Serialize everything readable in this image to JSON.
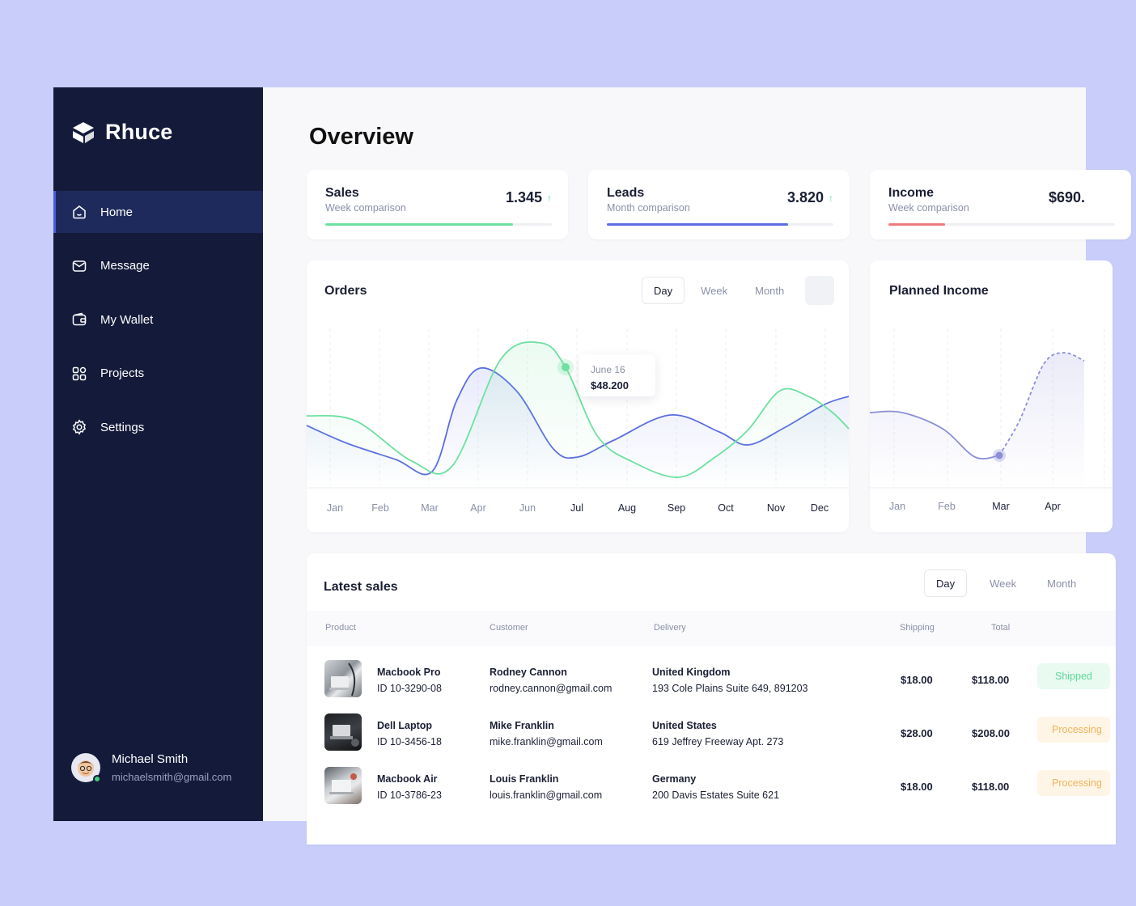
{
  "app": {
    "name": "Rhuce"
  },
  "sidebar": {
    "items": [
      {
        "label": "Home",
        "icon": "home-icon",
        "active": true
      },
      {
        "label": "Message",
        "icon": "mail-icon"
      },
      {
        "label": "My Wallet",
        "icon": "wallet-icon"
      },
      {
        "label": "Projects",
        "icon": "grid-icon"
      },
      {
        "label": "Settings",
        "icon": "gear-icon"
      }
    ],
    "user": {
      "name": "Michael Smith",
      "email": "michaelsmith@gmail.com",
      "status": "online"
    }
  },
  "page": {
    "title": "Overview"
  },
  "stats": [
    {
      "name": "Sales",
      "sub": "Week comparison",
      "value": "1.345",
      "progress": 0.83,
      "color": "#6ee0a0"
    },
    {
      "name": "Leads",
      "sub": "Month comparison",
      "value": "3.820",
      "progress": 0.8,
      "color": "#5b6ee1"
    },
    {
      "name": "Income",
      "sub": "Week comparison",
      "value": "$690.",
      "progress": 0.25,
      "color": "#ef7b7b"
    }
  ],
  "orders": {
    "title": "Orders",
    "filters": [
      "Day",
      "Week",
      "Month"
    ],
    "active_filter": "Day",
    "tooltip": {
      "date": "June 16",
      "value": "$48.200"
    },
    "chart_data": {
      "type": "line",
      "categories": [
        "Jan",
        "Feb",
        "Mar",
        "Apr",
        "Jun",
        "Jul",
        "Aug",
        "Sep",
        "Oct",
        "Nov",
        "Dec"
      ],
      "series": [
        {
          "color": "#5b6ee1"
        },
        {
          "color": "#6ee0a0"
        }
      ]
    }
  },
  "planned_income": {
    "title": "Planned Income",
    "chart_data": {
      "type": "line",
      "categories": [
        "Jan",
        "Feb",
        "Mar",
        "Apr"
      ],
      "series": [
        {
          "color": "#8c8fd6"
        }
      ]
    }
  },
  "latest_sales": {
    "title": "Latest sales",
    "filters": [
      "Day",
      "Week",
      "Month"
    ],
    "active_filter": "Day",
    "columns": {
      "product": "Product",
      "customer": "Customer",
      "delivery": "Delivery",
      "shipping": "Shipping",
      "total": "Total"
    },
    "rows": [
      {
        "product": "Macbook Pro",
        "id": "ID 10-3290-08",
        "customer": "Rodney Cannon",
        "email": "rodney.cannon@gmail.com",
        "country": "United Kingdom",
        "address": "193 Cole Plains Suite 649, 891203",
        "shipping": "$18.00",
        "total": "$118.00",
        "status": "Shipped",
        "status_color": "#5fd89a",
        "status_bg": "#e9faf1"
      },
      {
        "product": "Dell Laptop",
        "id": "ID 10-3456-18",
        "customer": "Mike Franklin",
        "email": "mike.franklin@gmail.com",
        "country": "United States",
        "address": "619 Jeffrey Freeway Apt. 273",
        "shipping": "$28.00",
        "total": "$208.00",
        "status": "Processing",
        "status_color": "#f2b35c",
        "status_bg": "#fff5e6"
      },
      {
        "product": "Macbook Air",
        "id": "ID 10-3786-23",
        "customer": "Louis Franklin",
        "email": "louis.franklin@gmail.com",
        "country": "Germany",
        "address": "200 Davis Estates Suite 621",
        "shipping": "$18.00",
        "total": "$118.00",
        "status": "Processing",
        "status_color": "#f2b35c",
        "status_bg": "#fff5e6"
      }
    ]
  }
}
